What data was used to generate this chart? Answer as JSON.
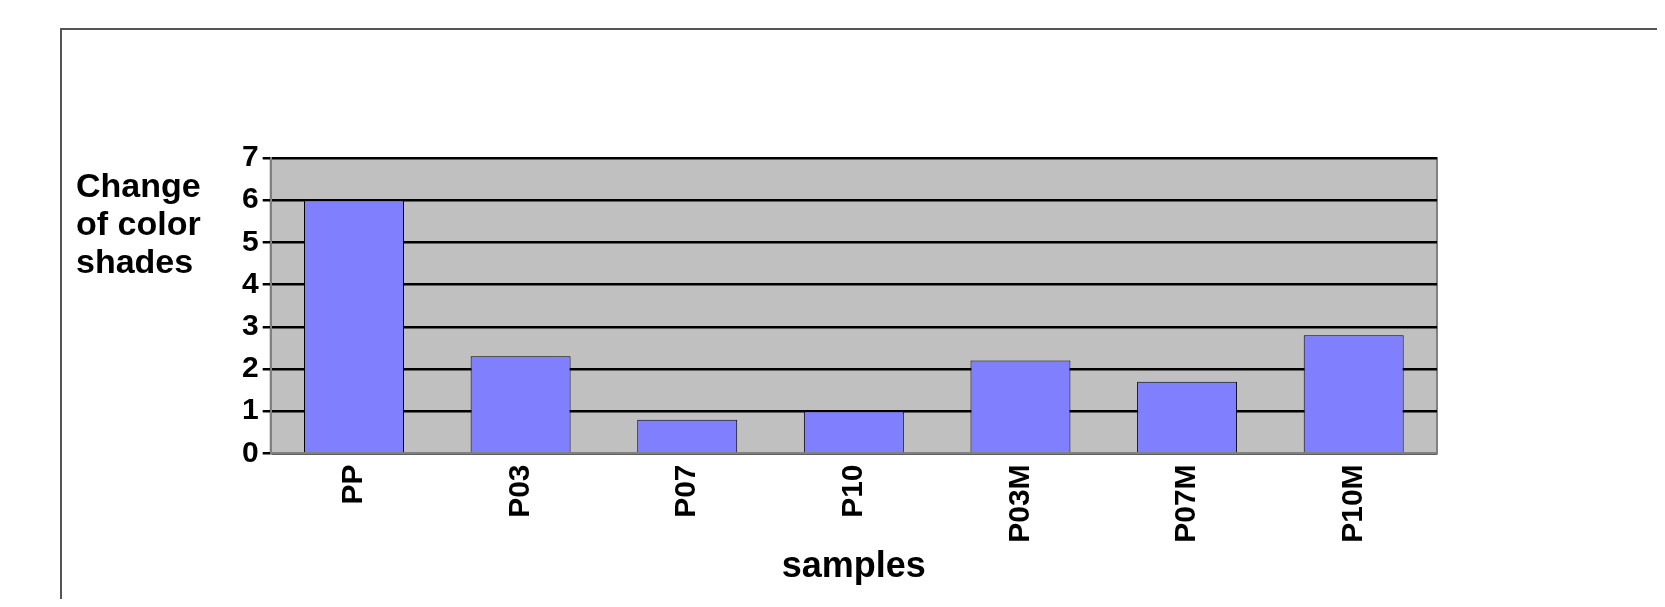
{
  "chart_data": {
    "type": "bar",
    "xlabel": "samples",
    "ylabel": "Change of color shades",
    "categories": [
      "PP",
      "P03",
      "P07",
      "P10",
      "P03M",
      "P07M",
      "P10M"
    ],
    "values": [
      6,
      2.3,
      0.8,
      1,
      2.2,
      1.7,
      2.8
    ],
    "color": "#8080ff",
    "ylim": [
      0,
      7
    ],
    "yticks": [
      0,
      1,
      2,
      3,
      4,
      5,
      6,
      7
    ],
    "grid": "y",
    "legend": false
  }
}
